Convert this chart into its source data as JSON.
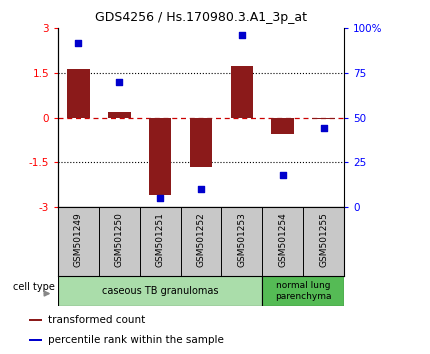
{
  "title": "GDS4256 / Hs.170980.3.A1_3p_at",
  "samples": [
    "GSM501249",
    "GSM501250",
    "GSM501251",
    "GSM501252",
    "GSM501253",
    "GSM501254",
    "GSM501255"
  ],
  "transformed_counts": [
    1.65,
    0.2,
    -2.6,
    -1.65,
    1.75,
    -0.55,
    -0.05
  ],
  "percentile_ranks": [
    92,
    70,
    5,
    10,
    96,
    18,
    44
  ],
  "ylim_left": [
    -3,
    3
  ],
  "ylim_right": [
    0,
    100
  ],
  "yticks_left": [
    -3,
    -1.5,
    0,
    1.5,
    3
  ],
  "yticks_right": [
    0,
    25,
    50,
    75,
    100
  ],
  "ytick_labels_right": [
    "0",
    "25",
    "50",
    "75",
    "100%"
  ],
  "dotted_lines": [
    1.5,
    -1.5
  ],
  "bar_color": "#8B1A1A",
  "dot_color": "#0000CC",
  "dashed_color": "#CC0000",
  "group1_label": "caseous TB granulomas",
  "group1_color": "#AADDAA",
  "group1_n": 5,
  "group2_label": "normal lung\nparenchyma",
  "group2_color": "#55BB55",
  "group2_n": 2,
  "cell_type_label": "cell type",
  "legend_items": [
    {
      "color": "#8B1A1A",
      "label": "transformed count"
    },
    {
      "color": "#0000CC",
      "label": "percentile rank within the sample"
    }
  ],
  "bar_width": 0.55,
  "bg_color": "#FFFFFF",
  "sample_box_color": "#C8C8C8"
}
